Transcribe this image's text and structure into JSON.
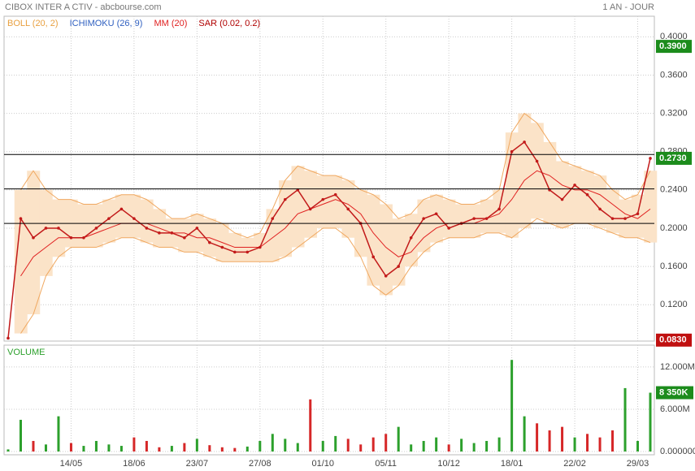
{
  "chart_data": [
    {
      "type": "line",
      "title": "CIBOX INTER A CTIV - abcbourse.com",
      "subtitle": "1 AN - JOUR",
      "categories": [
        null,
        null,
        null,
        null,
        null,
        "14/05",
        null,
        null,
        null,
        null,
        "18/06",
        null,
        null,
        null,
        null,
        "23/07",
        null,
        null,
        null,
        null,
        "27/08",
        null,
        null,
        null,
        null,
        "01/10",
        null,
        null,
        null,
        null,
        "05/11",
        null,
        null,
        null,
        null,
        "10/12",
        null,
        null,
        null,
        null,
        "18/01",
        null,
        null,
        null,
        null,
        "22/02",
        null,
        null,
        null,
        null,
        "29/03",
        null
      ],
      "values": [
        0.085,
        0.21,
        0.19,
        0.2,
        0.2,
        0.19,
        0.19,
        0.2,
        0.21,
        0.22,
        0.21,
        0.2,
        0.195,
        0.195,
        0.19,
        0.2,
        0.185,
        0.18,
        0.175,
        0.175,
        0.18,
        0.21,
        0.23,
        0.24,
        0.22,
        0.23,
        0.235,
        0.22,
        0.205,
        0.17,
        0.15,
        0.16,
        0.19,
        0.21,
        0.215,
        0.2,
        0.205,
        0.21,
        0.21,
        0.22,
        0.28,
        0.29,
        0.27,
        0.24,
        0.23,
        0.245,
        0.235,
        0.22,
        0.21,
        0.21,
        0.215,
        0.273
      ],
      "color": "#c21a1a",
      "bands": {
        "color": "#f0a860",
        "fill": "#fbe3c8",
        "upper": [
          null,
          0.24,
          0.26,
          0.24,
          0.23,
          0.23,
          0.225,
          0.225,
          0.23,
          0.235,
          0.235,
          0.23,
          0.22,
          0.21,
          0.21,
          0.215,
          0.21,
          0.205,
          0.195,
          0.19,
          0.195,
          0.22,
          0.25,
          0.265,
          0.26,
          0.255,
          0.255,
          0.25,
          0.24,
          0.235,
          0.225,
          0.21,
          0.215,
          0.23,
          0.235,
          0.23,
          0.225,
          0.225,
          0.23,
          0.24,
          0.3,
          0.32,
          0.31,
          0.29,
          0.27,
          0.265,
          0.26,
          0.255,
          0.24,
          0.23,
          0.235,
          0.26
        ],
        "lower": [
          null,
          0.09,
          0.11,
          0.15,
          0.17,
          0.18,
          0.18,
          0.18,
          0.185,
          0.19,
          0.19,
          0.185,
          0.18,
          0.18,
          0.175,
          0.175,
          0.17,
          0.165,
          0.165,
          0.165,
          0.165,
          0.165,
          0.17,
          0.18,
          0.19,
          0.2,
          0.2,
          0.19,
          0.17,
          0.14,
          0.13,
          0.14,
          0.16,
          0.175,
          0.185,
          0.19,
          0.19,
          0.19,
          0.195,
          0.195,
          0.19,
          0.2,
          0.21,
          0.205,
          0.2,
          0.205,
          0.205,
          0.2,
          0.195,
          0.19,
          0.19,
          0.185
        ]
      },
      "ma": {
        "color": "#e02020",
        "values": [
          null,
          0.15,
          0.17,
          0.18,
          0.19,
          0.19,
          0.19,
          0.195,
          0.2,
          0.205,
          0.205,
          0.205,
          0.2,
          0.195,
          0.195,
          0.19,
          0.19,
          0.185,
          0.18,
          0.18,
          0.18,
          0.19,
          0.2,
          0.215,
          0.22,
          0.225,
          0.23,
          0.225,
          0.215,
          0.195,
          0.18,
          0.17,
          0.175,
          0.19,
          0.2,
          0.205,
          0.205,
          0.205,
          0.21,
          0.215,
          0.23,
          0.25,
          0.26,
          0.255,
          0.245,
          0.24,
          0.24,
          0.235,
          0.225,
          0.215,
          0.21,
          0.22
        ]
      },
      "legend": [
        {
          "label": "BOLL (20, 2)",
          "color": "#e8a040"
        },
        {
          "label": "ICHIMOKU (26, 9)",
          "color": "#3060c0"
        },
        {
          "label": "MM (20)",
          "color": "#e02020"
        },
        {
          "label": "SAR (0.02, 0.2)",
          "color": "#b00000"
        }
      ],
      "levels": [
        0.277,
        0.241,
        0.205
      ],
      "price_labels": [
        {
          "value": 0.39,
          "label": "0.3900",
          "color": "#1c8c1c"
        },
        {
          "value": 0.273,
          "label": "0.2730",
          "color": "#1c8c1c"
        },
        {
          "value": 0.083,
          "label": "0.0830",
          "color": "#c01010"
        }
      ],
      "ylim": [
        0.082,
        0.413
      ],
      "yticks": [
        {
          "value": 0.12,
          "label": "0.1200"
        },
        {
          "value": 0.16,
          "label": "0.1600"
        },
        {
          "value": 0.2,
          "label": "0.2000"
        },
        {
          "value": 0.24,
          "label": "0.2400"
        },
        {
          "value": 0.28,
          "label": "0.2800"
        },
        {
          "value": 0.32,
          "label": "0.3200"
        },
        {
          "value": 0.36,
          "label": "0.3600"
        },
        {
          "value": 0.4,
          "label": "0.4000"
        }
      ],
      "grid": true
    },
    {
      "type": "bar",
      "title": "VOLUME",
      "values": [
        300000,
        4500000,
        1500000,
        1000000,
        5000000,
        1200000,
        800000,
        1500000,
        1000000,
        800000,
        2000000,
        1500000,
        600000,
        800000,
        1200000,
        1800000,
        900000,
        600000,
        500000,
        700000,
        1500000,
        2500000,
        1800000,
        1200000,
        7400000,
        1500000,
        2200000,
        1800000,
        1000000,
        2000000,
        2500000,
        3500000,
        1000000,
        1500000,
        2000000,
        1000000,
        1800000,
        1200000,
        1500000,
        2000000,
        13000000,
        5000000,
        4000000,
        3000000,
        3500000,
        2000000,
        2500000,
        2000000,
        3000000,
        9000000,
        1500000,
        8350000
      ],
      "last_label": {
        "value": 8350000,
        "label": "8 350K",
        "color": "#1c8c1c"
      },
      "up_color": "#2ca02c",
      "down_color": "#d62728",
      "ylim": [
        0,
        15100000
      ],
      "yticks": [
        {
          "value": 0,
          "label": "0.000000"
        },
        {
          "value": 6000000,
          "label": "6.000M"
        },
        {
          "value": 12000000,
          "label": "12.000M"
        }
      ],
      "grid": true
    }
  ]
}
